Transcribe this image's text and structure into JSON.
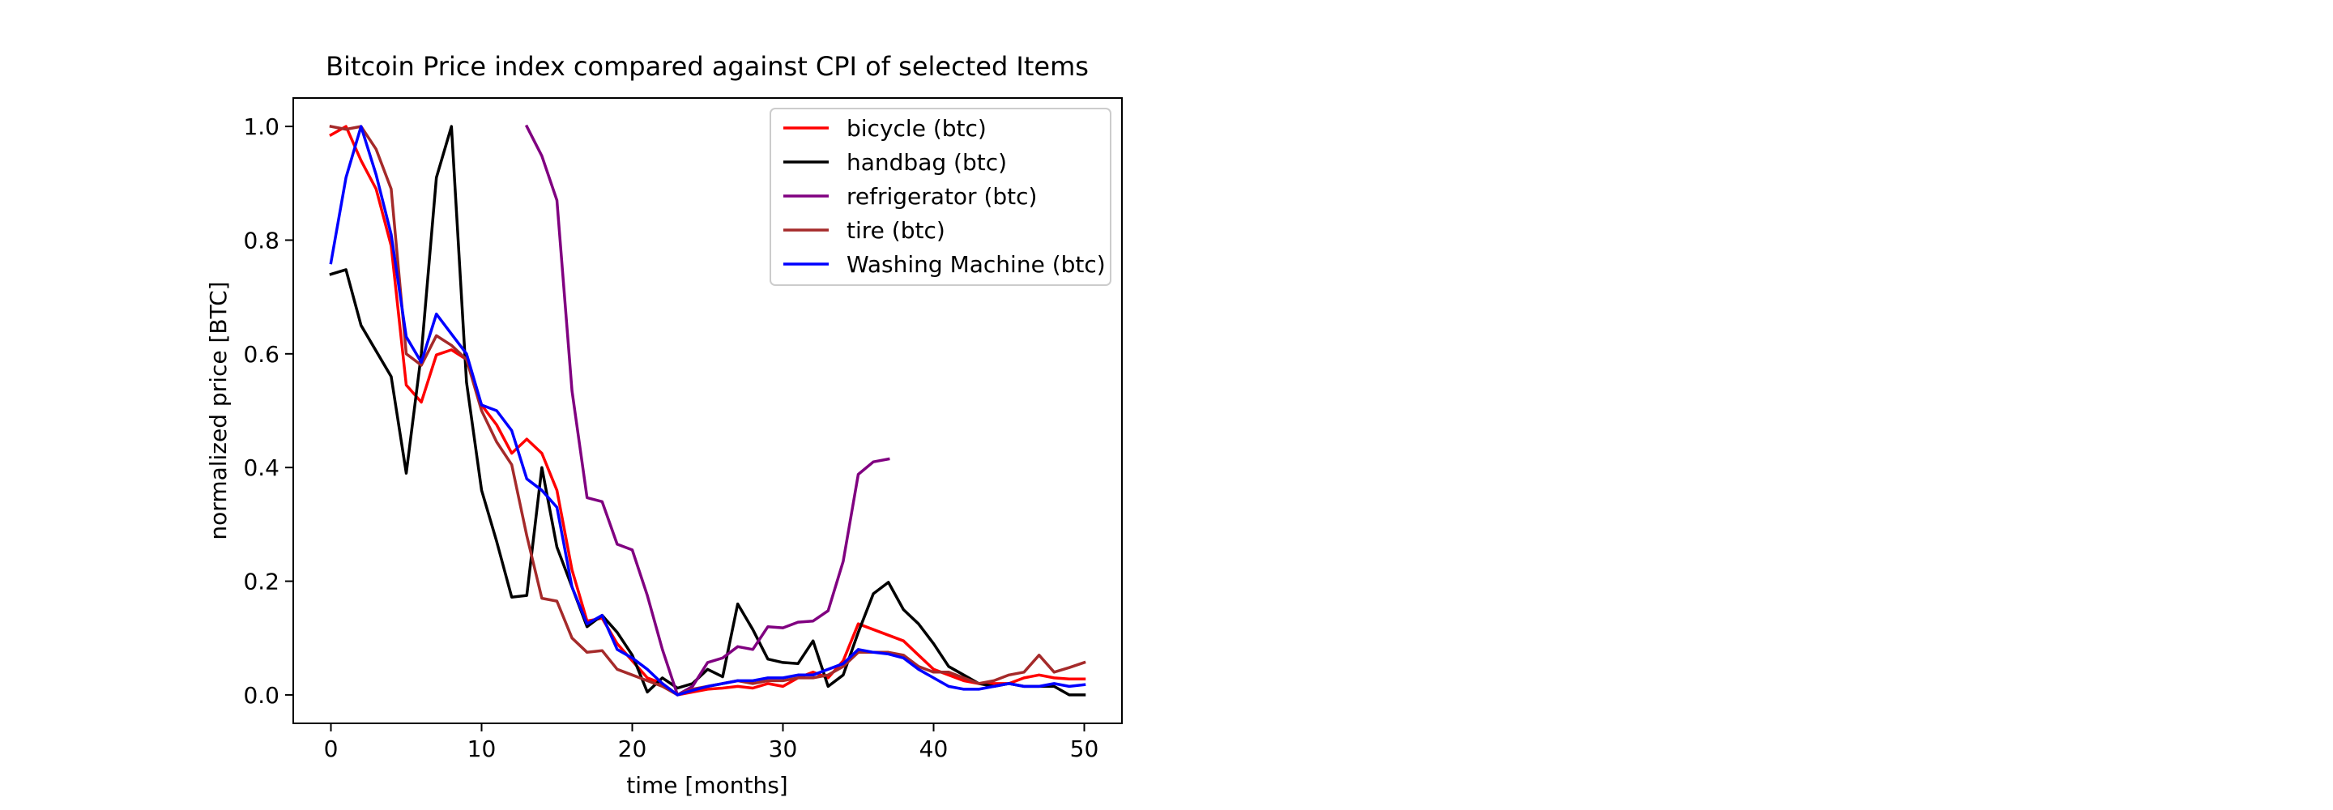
{
  "chart_data": {
    "type": "line",
    "title": "Bitcoin Price index compared against CPI of selected Items",
    "xlabel": "time [months]",
    "ylabel": "normalized price [BTC]",
    "xlim": [
      -2.5,
      52.5
    ],
    "ylim": [
      -0.05,
      1.05
    ],
    "xticks": [
      0,
      10,
      20,
      30,
      40,
      50
    ],
    "yticks": [
      0.0,
      0.2,
      0.4,
      0.6,
      0.8,
      1.0
    ],
    "xtick_labels": [
      "0",
      "10",
      "20",
      "30",
      "40",
      "50"
    ],
    "ytick_labels": [
      "0.0",
      "0.2",
      "0.4",
      "0.6",
      "0.8",
      "1.0"
    ],
    "grid": false,
    "legend_position": "top-right",
    "series": [
      {
        "name": "bicycle (btc)",
        "color": "#ff0000",
        "x": [
          0,
          1,
          2,
          3,
          4,
          5,
          6,
          7,
          8,
          9,
          10,
          11,
          12,
          13,
          14,
          15,
          16,
          17,
          18,
          19,
          20,
          21,
          22,
          23,
          24,
          25,
          26,
          27,
          28,
          29,
          30,
          31,
          32,
          33,
          34,
          35,
          36,
          37,
          38,
          39,
          40,
          41,
          42,
          43,
          44,
          45,
          46,
          47,
          48,
          49,
          50
        ],
        "y": [
          0.985,
          1.0,
          0.94,
          0.89,
          0.79,
          0.545,
          0.515,
          0.598,
          0.607,
          0.59,
          0.51,
          0.475,
          0.425,
          0.45,
          0.425,
          0.36,
          0.22,
          0.13,
          0.135,
          0.09,
          0.06,
          0.03,
          0.02,
          0.0,
          0.005,
          0.01,
          0.012,
          0.015,
          0.012,
          0.02,
          0.015,
          0.03,
          0.04,
          0.03,
          0.06,
          0.125,
          0.115,
          0.105,
          0.095,
          0.07,
          0.045,
          0.035,
          0.025,
          0.02,
          0.02,
          0.02,
          0.03,
          0.035,
          0.03,
          0.028,
          0.028
        ]
      },
      {
        "name": "handbag (btc)",
        "color": "#000000",
        "x": [
          0,
          1,
          2,
          3,
          4,
          5,
          6,
          7,
          8,
          9,
          10,
          11,
          12,
          13,
          14,
          15,
          16,
          17,
          18,
          19,
          20,
          21,
          22,
          23,
          24,
          25,
          26,
          27,
          28,
          29,
          30,
          31,
          32,
          33,
          34,
          35,
          36,
          37,
          38,
          39,
          40,
          41,
          42,
          43,
          44,
          45,
          46,
          47,
          48,
          49,
          50
        ],
        "y": [
          0.74,
          0.748,
          0.65,
          0.605,
          0.56,
          0.39,
          0.6,
          0.91,
          1.0,
          0.55,
          0.36,
          0.27,
          0.172,
          0.175,
          0.4,
          0.26,
          0.19,
          0.12,
          0.14,
          0.11,
          0.07,
          0.005,
          0.03,
          0.012,
          0.02,
          0.045,
          0.032,
          0.16,
          0.115,
          0.063,
          0.057,
          0.055,
          0.095,
          0.015,
          0.035,
          0.11,
          0.178,
          0.198,
          0.15,
          0.125,
          0.09,
          0.05,
          0.035,
          0.02,
          0.015,
          0.02,
          0.015,
          0.015,
          0.015,
          0.0,
          0.0
        ]
      },
      {
        "name": "refrigerator (btc)",
        "color": "#800080",
        "x": [
          13,
          14,
          15,
          16,
          17,
          18,
          19,
          20,
          21,
          22,
          23,
          24,
          25,
          26,
          27,
          28,
          29,
          30,
          31,
          32,
          33,
          34,
          35,
          36,
          37
        ],
        "y": [
          1.0,
          0.948,
          0.87,
          0.535,
          0.347,
          0.34,
          0.265,
          0.255,
          0.175,
          0.08,
          0.0,
          0.015,
          0.057,
          0.065,
          0.085,
          0.08,
          0.12,
          0.118,
          0.128,
          0.13,
          0.148,
          0.235,
          0.388,
          0.41,
          0.415
        ]
      },
      {
        "name": "tire (btc)",
        "color": "#a52a2a",
        "x": [
          0,
          1,
          2,
          3,
          4,
          5,
          6,
          7,
          8,
          9,
          10,
          11,
          12,
          13,
          14,
          15,
          16,
          17,
          18,
          19,
          20,
          21,
          22,
          23,
          24,
          25,
          26,
          27,
          28,
          29,
          30,
          31,
          32,
          33,
          34,
          35,
          36,
          37,
          38,
          39,
          40,
          41,
          42,
          43,
          44,
          45,
          46,
          47,
          48,
          49,
          50
        ],
        "y": [
          1.0,
          0.995,
          1.0,
          0.96,
          0.89,
          0.6,
          0.58,
          0.632,
          0.615,
          0.59,
          0.5,
          0.445,
          0.405,
          0.28,
          0.17,
          0.165,
          0.1,
          0.075,
          0.078,
          0.045,
          0.035,
          0.025,
          0.015,
          0.0,
          0.01,
          0.015,
          0.02,
          0.025,
          0.02,
          0.025,
          0.025,
          0.03,
          0.03,
          0.035,
          0.05,
          0.075,
          0.075,
          0.075,
          0.07,
          0.05,
          0.04,
          0.04,
          0.03,
          0.02,
          0.025,
          0.035,
          0.04,
          0.07,
          0.04,
          0.048,
          0.057
        ]
      },
      {
        "name": "Washing Machine (btc)",
        "color": "#0000ff",
        "x": [
          0,
          1,
          2,
          3,
          4,
          5,
          6,
          7,
          8,
          9,
          10,
          11,
          12,
          13,
          14,
          15,
          16,
          17,
          18,
          19,
          20,
          21,
          22,
          23,
          24,
          25,
          26,
          27,
          28,
          29,
          30,
          31,
          32,
          33,
          34,
          35,
          36,
          37,
          38,
          39,
          40,
          41,
          42,
          43,
          44,
          45,
          46,
          47,
          48,
          49,
          50
        ],
        "y": [
          0.76,
          0.91,
          1.0,
          0.915,
          0.81,
          0.63,
          0.585,
          0.67,
          0.635,
          0.6,
          0.51,
          0.5,
          0.465,
          0.38,
          0.36,
          0.33,
          0.19,
          0.125,
          0.14,
          0.08,
          0.065,
          0.045,
          0.02,
          0.0,
          0.008,
          0.015,
          0.02,
          0.025,
          0.025,
          0.03,
          0.03,
          0.035,
          0.035,
          0.045,
          0.055,
          0.08,
          0.075,
          0.072,
          0.065,
          0.045,
          0.03,
          0.015,
          0.01,
          0.01,
          0.015,
          0.02,
          0.015,
          0.015,
          0.02,
          0.015,
          0.018
        ]
      }
    ]
  }
}
